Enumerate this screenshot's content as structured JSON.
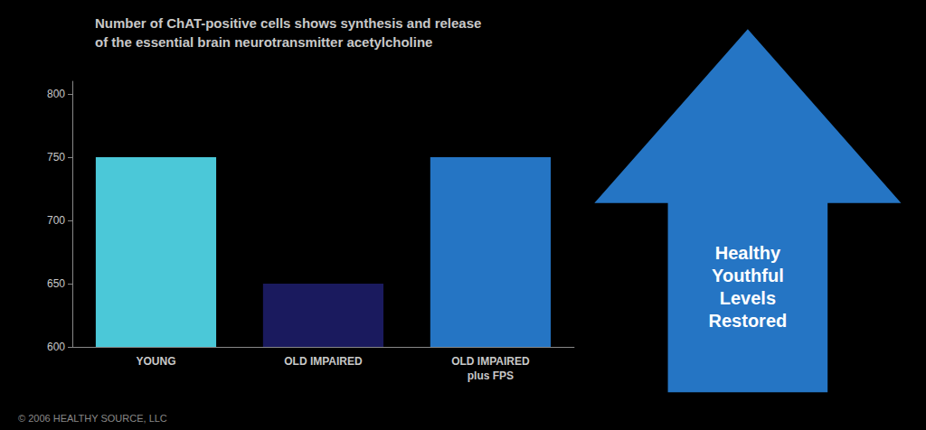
{
  "chart_data": {
    "type": "bar",
    "title": "Number of ChAT-positive cells shows synthesis and release\nof the essential brain neurotransmitter acetylcholine",
    "categories": [
      "YOUNG",
      "OLD IMPAIRED",
      "OLD IMPAIRED\nplus FPS"
    ],
    "values": [
      750,
      650,
      750
    ],
    "colors": [
      "#4bc8d8",
      "#1a1a5e",
      "#2575c4"
    ],
    "ylim": [
      600,
      810
    ],
    "yticks": [
      600,
      650,
      700,
      750,
      800
    ],
    "grid": false,
    "annotations": [
      "Healthy\nYouthful\nLevels\nRestored",
      "© 2006 HEALTHY SOURCE, LLC"
    ]
  }
}
